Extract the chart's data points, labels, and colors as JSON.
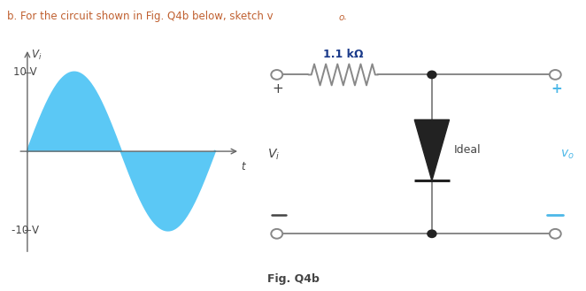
{
  "title_text": "b. For the circuit shown in Fig. Q4b below, sketch v",
  "title_sub": "o",
  "title_dot": ".",
  "fig_caption": "Fig. Q4b",
  "sine_color": "#5bc8f5",
  "vi_max": 10,
  "vi_min": -10,
  "resistor_label": "1.1 kΩ",
  "diode_label": "Ideal",
  "plus_color": "#4db8e8",
  "minus_color": "#4db8e8",
  "vo_color": "#4db8e8",
  "circuit_line_color": "#888888",
  "dot_color": "#222222",
  "diode_color": "#222222",
  "background": "#ffffff",
  "text_color": "#444444",
  "title_color": "#c06030",
  "resistor_label_color": "#1a3a8a"
}
